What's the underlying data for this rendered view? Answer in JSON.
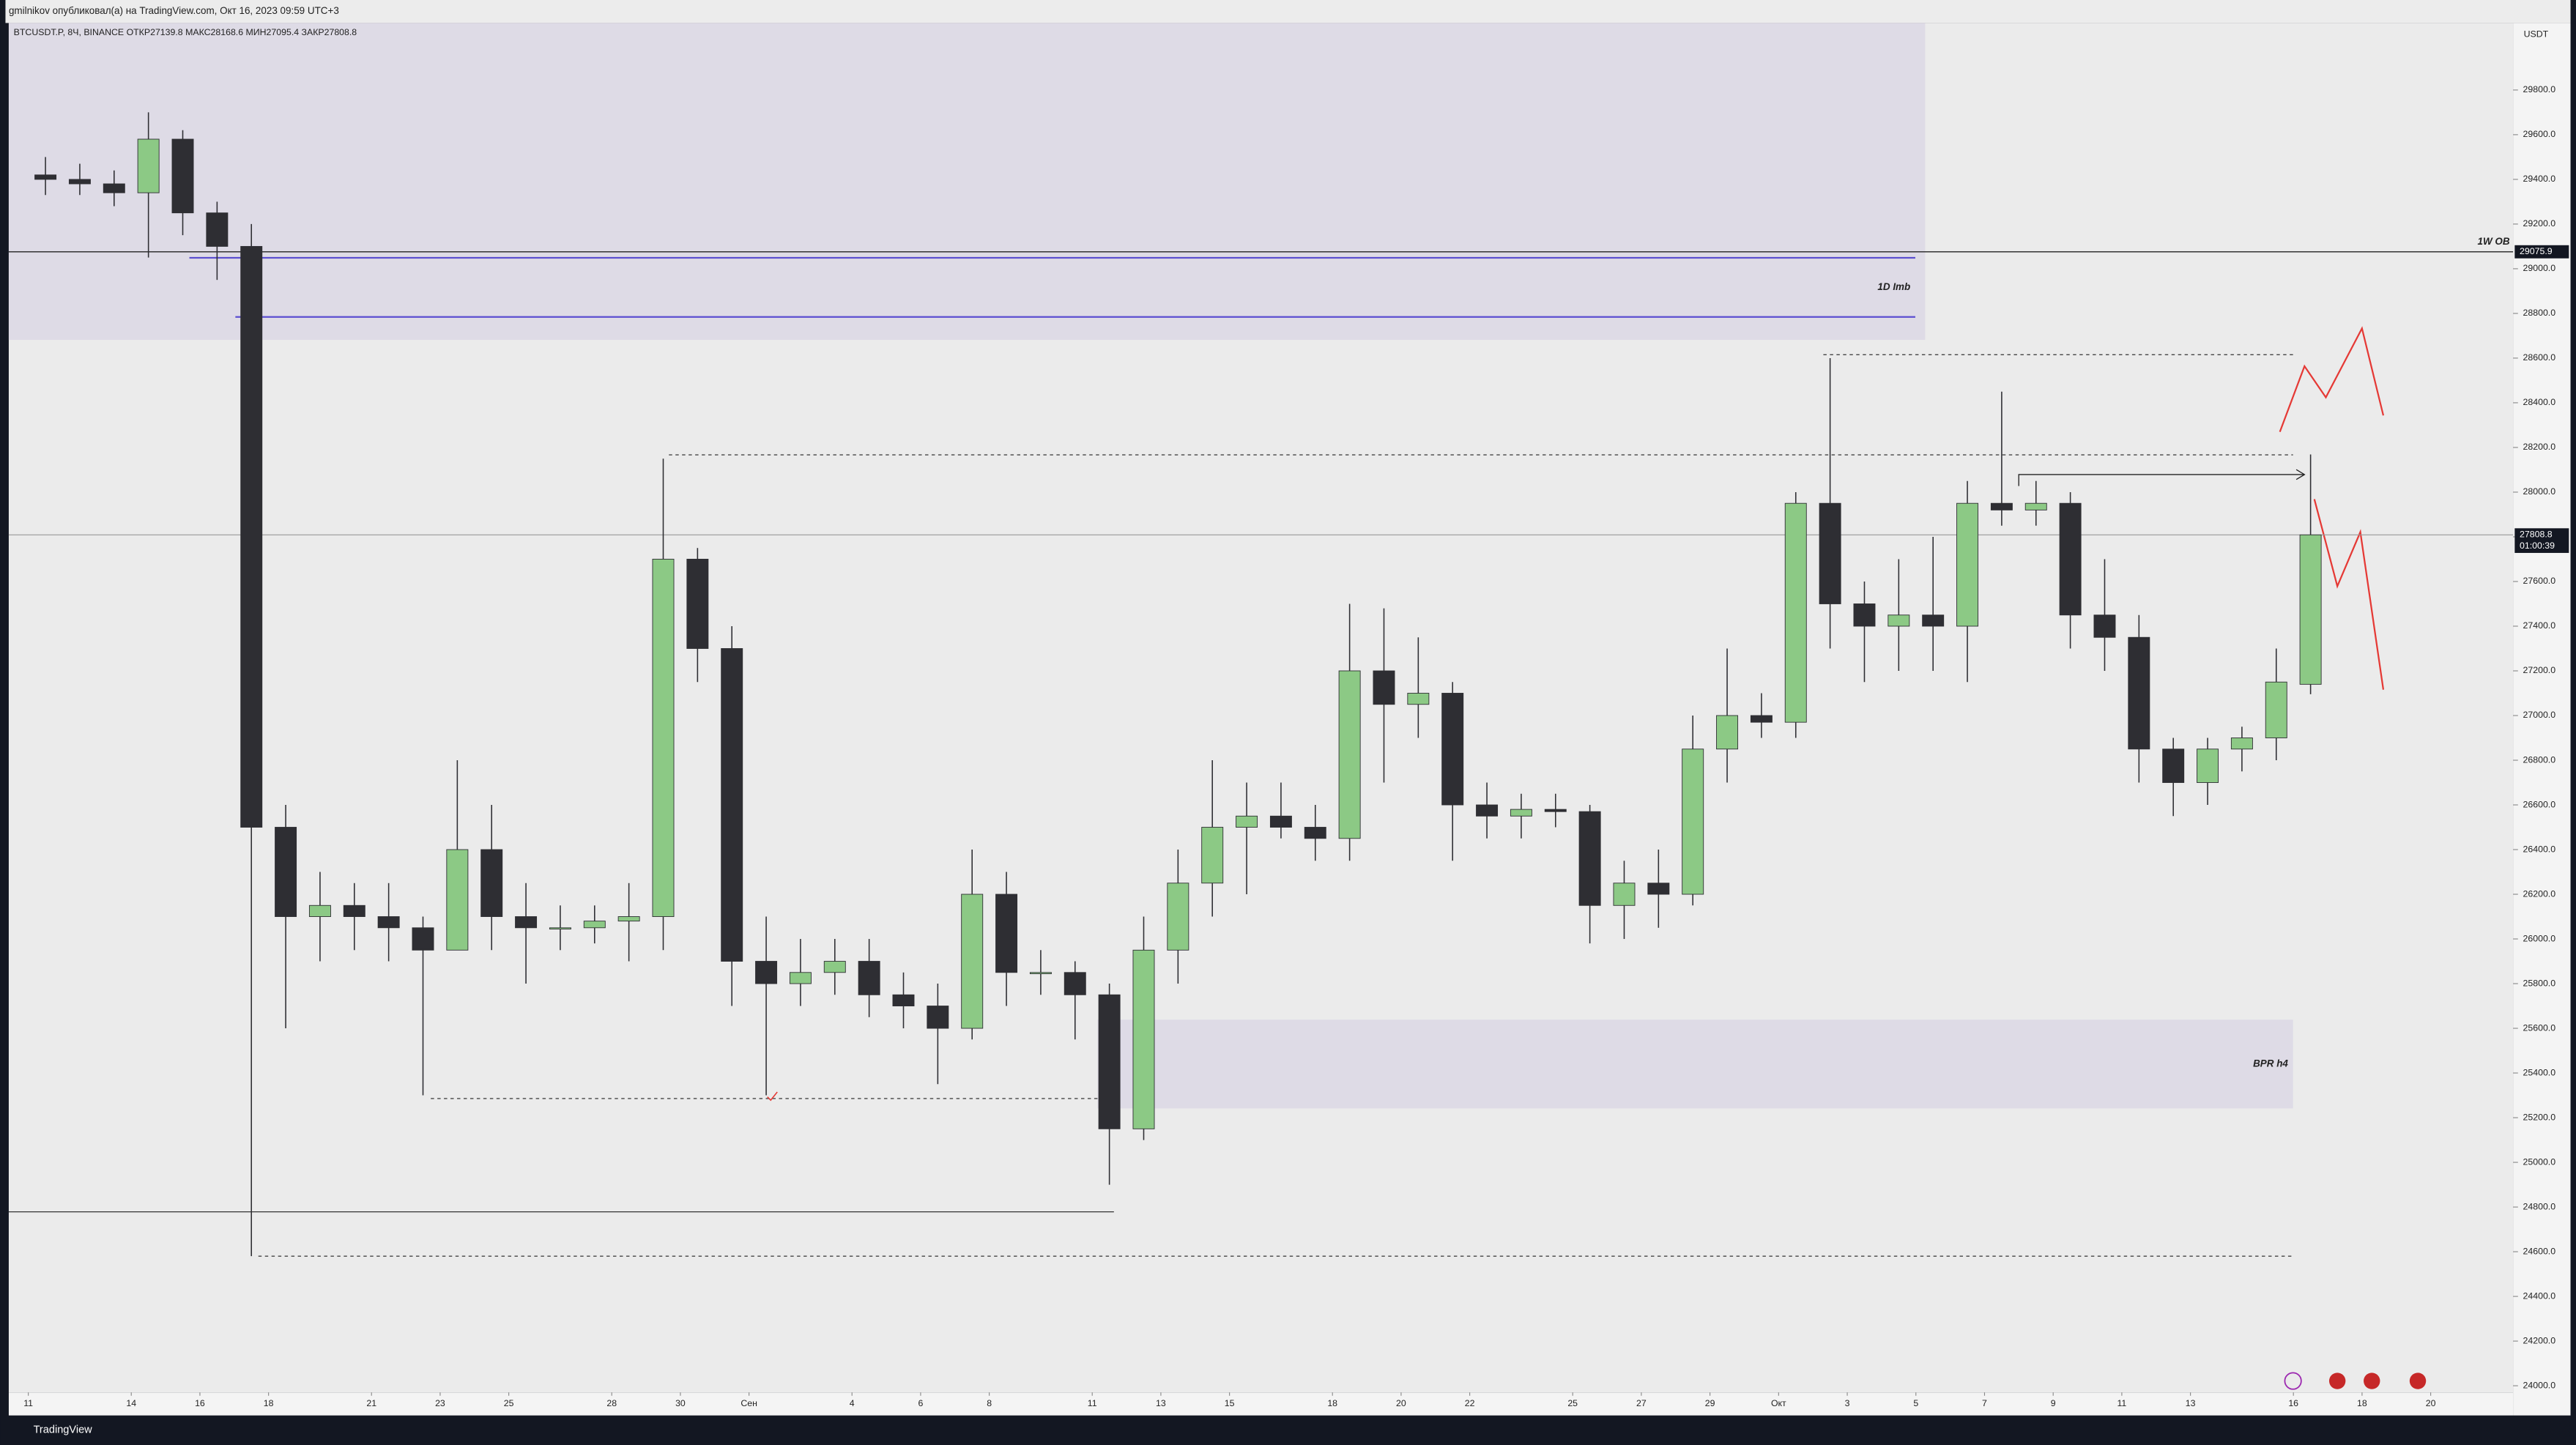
{
  "chart_data": {
    "type": "candlestick",
    "header": "gmilnikov опубликовал(а) на TradingView.com, Окт 16, 2023 09:59 UTC+3",
    "title": "BTCUSDT.P, 8Ч, BINANCE  ОТКР27139.8  МАКС28168.6  МИН27095.4  ЗАКР27808.8",
    "currency": "USDT",
    "brand": "TradingView",
    "up_color": "#8cc985",
    "down_color": "#2e2e33",
    "x": [
      0,
      1,
      2,
      3,
      4,
      5,
      6,
      7,
      8,
      9,
      10,
      11,
      12,
      13,
      14,
      15,
      16,
      17,
      18,
      19,
      20,
      21,
      22,
      23,
      24,
      25,
      26,
      27,
      28,
      29,
      30,
      31,
      32,
      33,
      34,
      35,
      36,
      37,
      38,
      39,
      40,
      41,
      42,
      43,
      44,
      45,
      46,
      47,
      48,
      49,
      50,
      51,
      52,
      53,
      54,
      55,
      56,
      57,
      58,
      59,
      60,
      61,
      62,
      63,
      64,
      65,
      66
    ],
    "open": [
      29420,
      29400,
      29380,
      29340,
      29580,
      29250,
      29100,
      26500,
      26100,
      26150,
      26100,
      26050,
      25950,
      26400,
      26100,
      26050,
      26050,
      26080,
      26100,
      27700,
      27300,
      25900,
      25800,
      25850,
      25900,
      25750,
      25700,
      25600,
      26200,
      25850,
      25850,
      25750,
      25150,
      25950,
      26250,
      26500,
      26550,
      26500,
      26450,
      27200,
      27050,
      27100,
      26600,
      26550,
      26580,
      26570,
      26150,
      26250,
      26200,
      26850,
      27000,
      26970,
      27950,
      27500,
      27400,
      27450,
      27400,
      27950,
      27920,
      27950,
      27450,
      27350,
      26850,
      26700,
      26850,
      26900,
      27139.8
    ],
    "high": [
      29500,
      29470,
      29440,
      29700,
      29620,
      29300,
      29200,
      26600,
      26300,
      26250,
      26250,
      26100,
      26800,
      26600,
      26250,
      26150,
      26150,
      26250,
      28150,
      27750,
      27400,
      26100,
      26000,
      26000,
      26000,
      25850,
      25800,
      26400,
      26300,
      25950,
      25900,
      25800,
      26100,
      26400,
      26800,
      26700,
      26700,
      26600,
      27500,
      27480,
      27350,
      27150,
      26700,
      26650,
      26650,
      26600,
      26350,
      26400,
      27000,
      27300,
      27100,
      28000,
      28600,
      27600,
      27700,
      27800,
      28050,
      28450,
      28050,
      28000,
      27700,
      27450,
      26900,
      26900,
      26950,
      27300,
      28168.6
    ],
    "low": [
      29330,
      29330,
      29280,
      29050,
      29150,
      28950,
      24580,
      25600,
      25900,
      25950,
      25900,
      25300,
      25950,
      25950,
      25800,
      25950,
      25980,
      25900,
      25950,
      27150,
      25700,
      25300,
      25700,
      25750,
      25650,
      25600,
      25350,
      25550,
      25700,
      25750,
      25550,
      24900,
      25100,
      25800,
      26100,
      26200,
      26450,
      26350,
      26350,
      26700,
      26900,
      26350,
      26450,
      26450,
      26500,
      25980,
      26000,
      26050,
      26150,
      26700,
      26900,
      26900,
      27300,
      27150,
      27200,
      27200,
      27150,
      27850,
      27850,
      27300,
      27200,
      26700,
      26550,
      26600,
      26750,
      26800,
      27095.4
    ],
    "close": [
      29400,
      29380,
      29340,
      29580,
      29250,
      29100,
      26500,
      26100,
      26150,
      26100,
      26050,
      25950,
      26400,
      26100,
      26050,
      26050,
      26080,
      26100,
      27700,
      27300,
      25900,
      25800,
      25850,
      25900,
      25750,
      25700,
      25600,
      26200,
      25850,
      25850,
      25750,
      25150,
      25950,
      26250,
      26500,
      26550,
      26500,
      26450,
      27200,
      27050,
      27100,
      26600,
      26550,
      26580,
      26570,
      26150,
      26250,
      26200,
      26850,
      27000,
      26970,
      27950,
      27500,
      27400,
      27450,
      27400,
      27950,
      27920,
      27950,
      27450,
      27350,
      26850,
      26700,
      26850,
      26900,
      27150,
      27808.8
    ],
    "xlim": [
      -0.57,
      72.4
    ],
    "ylim": [
      23970,
      30100
    ],
    "xticks": [
      {
        "value": 0,
        "label": "11"
      },
      {
        "value": 3,
        "label": "14"
      },
      {
        "value": 5,
        "label": "16"
      },
      {
        "value": 7,
        "label": "18"
      },
      {
        "value": 10,
        "label": "21"
      },
      {
        "value": 12,
        "label": "23"
      },
      {
        "value": 14,
        "label": "25"
      },
      {
        "value": 17,
        "label": "28"
      },
      {
        "value": 19,
        "label": "30"
      },
      {
        "value": 21,
        "label": "Сен"
      },
      {
        "value": 24,
        "label": "4"
      },
      {
        "value": 26,
        "label": "6"
      },
      {
        "value": 28,
        "label": "8"
      },
      {
        "value": 31,
        "label": "11"
      },
      {
        "value": 33,
        "label": "13"
      },
      {
        "value": 35,
        "label": "15"
      },
      {
        "value": 38,
        "label": "18"
      },
      {
        "value": 40,
        "label": "20"
      },
      {
        "value": 42,
        "label": "22"
      },
      {
        "value": 45,
        "label": "25"
      },
      {
        "value": 47,
        "label": "27"
      },
      {
        "value": 49,
        "label": "29"
      },
      {
        "value": 51,
        "label": "Окт"
      },
      {
        "value": 53,
        "label": "3"
      },
      {
        "value": 55,
        "label": "5"
      },
      {
        "value": 57,
        "label": "7"
      },
      {
        "value": 59,
        "label": "9"
      },
      {
        "value": 61,
        "label": "11"
      },
      {
        "value": 63,
        "label": "13"
      },
      {
        "value": 66,
        "label": "16"
      },
      {
        "value": 68,
        "label": "18"
      },
      {
        "value": 70,
        "label": "20"
      }
    ],
    "yticks": [
      {
        "value": 24000,
        "label": "24000.0"
      },
      {
        "value": 24200,
        "label": "24200.0"
      },
      {
        "value": 24400,
        "label": "24400.0"
      },
      {
        "value": 24600,
        "label": "24600.0"
      },
      {
        "value": 24800,
        "label": "24800.0"
      },
      {
        "value": 25000,
        "label": "25000.0"
      },
      {
        "value": 25200,
        "label": "25200.0"
      },
      {
        "value": 25400,
        "label": "25400.0"
      },
      {
        "value": 25600,
        "label": "25600.0"
      },
      {
        "value": 25800,
        "label": "25800.0"
      },
      {
        "value": 26000,
        "label": "26000.0"
      },
      {
        "value": 26200,
        "label": "26200.0"
      },
      {
        "value": 26400,
        "label": "26400.0"
      },
      {
        "value": 26600,
        "label": "26600.0"
      },
      {
        "value": 26800,
        "label": "26800.0"
      },
      {
        "value": 27000,
        "label": "27000.0"
      },
      {
        "value": 27200,
        "label": "27200.0"
      },
      {
        "value": 27400,
        "label": "27400.0"
      },
      {
        "value": 27600,
        "label": "27600.0"
      },
      {
        "value": 27800,
        "label": "27800.0"
      },
      {
        "value": 28000,
        "label": "28000.0"
      },
      {
        "value": 28200,
        "label": "28200.0"
      },
      {
        "value": 28400,
        "label": "28400.0"
      },
      {
        "value": 28600,
        "label": "28600.0"
      },
      {
        "value": 28800,
        "label": "28800.0"
      },
      {
        "value": 29000,
        "label": "29000.0"
      },
      {
        "value": 29200,
        "label": "29200.0"
      },
      {
        "value": 29400,
        "label": "29400.0"
      },
      {
        "value": 29600,
        "label": "29600.0"
      },
      {
        "value": 29800,
        "label": "29800.0"
      }
    ],
    "marker": {
      "label": "1W OB",
      "value": 29075.9
    },
    "last_price": {
      "value": 27808.8,
      "countdown": "01:00:39"
    },
    "zone_labels": [
      "1D Imb",
      "BPR h4"
    ]
  }
}
